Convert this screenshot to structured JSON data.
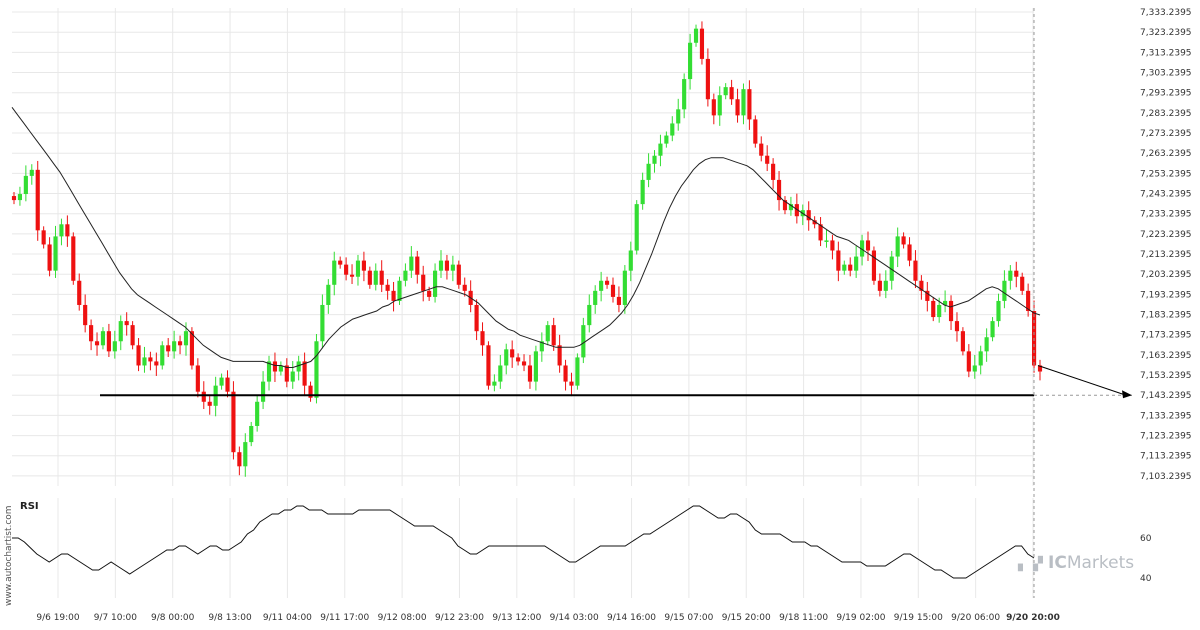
{
  "chart_data": {
    "type": "candlestick",
    "price_axis": {
      "labels": [
        "7,333.2395",
        "7,323.2395",
        "7,313.2395",
        "7,303.2395",
        "7,293.2395",
        "7,283.2395",
        "7,273.2395",
        "7,263.2395",
        "7,253.2395",
        "7,243.2395",
        "7,233.2395",
        "7,223.2395",
        "7,213.2395",
        "7,203.2395",
        "7,193.2395",
        "7,183.2395",
        "7,173.2395",
        "7,163.2395",
        "7,153.2395",
        "7,143.2395",
        "7,133.2395",
        "7,123.2395",
        "7,113.2395",
        "7,103.2395"
      ],
      "range": [
        7098.2395,
        7335.2395
      ]
    },
    "time_axis": {
      "labels": [
        "9/6 19:00",
        "9/7 10:00",
        "9/8 00:00",
        "9/8 13:00",
        "9/11 04:00",
        "9/11 17:00",
        "9/12 08:00",
        "9/12 23:00",
        "9/13 12:00",
        "9/14 03:00",
        "9/14 16:00",
        "9/15 07:00",
        "9/15 20:00",
        "9/18 11:00",
        "9/19 02:00",
        "9/19 15:00",
        "9/20 06:00",
        "9/20 20:00"
      ],
      "highlight": "9/20 20:00"
    },
    "support_level": 7143.2395,
    "projection": {
      "from": 7158.0,
      "to": 7143.2395
    },
    "candles": [
      7240,
      7243,
      7252,
      7255,
      7225,
      7218,
      7205,
      7222,
      7228,
      7222,
      7200,
      7188,
      7178,
      7170,
      7168,
      7175,
      7165,
      7170,
      7180,
      7178,
      7168,
      7158,
      7162,
      7160,
      7158,
      7168,
      7165,
      7170,
      7168,
      7175,
      7158,
      7145,
      7140,
      7138,
      7148,
      7152,
      7145,
      7115,
      7108,
      7120,
      7128,
      7140,
      7150,
      7160,
      7155,
      7158,
      7150,
      7155,
      7160,
      7148,
      7142,
      7170,
      7188,
      7198,
      7210,
      7208,
      7203,
      7202,
      7210,
      7205,
      7198,
      7205,
      7198,
      7195,
      7190,
      7200,
      7205,
      7212,
      7203,
      7195,
      7192,
      7205,
      7210,
      7205,
      7208,
      7198,
      7195,
      7188,
      7175,
      7168,
      7148,
      7150,
      7158,
      7166,
      7162,
      7160,
      7158,
      7150,
      7165,
      7170,
      7178,
      7168,
      7158,
      7150,
      7148,
      7162,
      7178,
      7188,
      7195,
      7200,
      7198,
      7192,
      7188,
      7205,
      7215,
      7238,
      7250,
      7258,
      7262,
      7268,
      7272,
      7278,
      7285,
      7300,
      7318,
      7325,
      7310,
      7290,
      7282,
      7292,
      7296,
      7290,
      7282,
      7295,
      7280,
      7268,
      7262,
      7258,
      7250,
      7240,
      7235,
      7238,
      7232,
      7235,
      7230,
      7228,
      7220,
      7220,
      7215,
      7205,
      7208,
      7205,
      7212,
      7220,
      7215,
      7200,
      7195,
      7200,
      7212,
      7222,
      7218,
      7210,
      7200,
      7195,
      7190,
      7182,
      7188,
      7190,
      7180,
      7175,
      7165,
      7155,
      7158,
      7165,
      7172,
      7180,
      7190,
      7200,
      7205,
      7202,
      7195,
      7185,
      7158,
      7155
    ],
    "ma_line": [
      7286,
      7282,
      7278,
      7274,
      7270,
      7266,
      7262,
      7258,
      7254,
      7249,
      7244,
      7239,
      7234,
      7229,
      7224,
      7219,
      7214,
      7209,
      7204,
      7200,
      7196,
      7193,
      7191,
      7189,
      7187,
      7185,
      7183,
      7181,
      7179,
      7177,
      7174,
      7171,
      7168,
      7166,
      7164,
      7162,
      7161,
      7160,
      7160,
      7160,
      7160,
      7160,
      7160,
      7159,
      7158,
      7158,
      7157,
      7157,
      7158,
      7159,
      7160,
      7163,
      7167,
      7171,
      7174,
      7177,
      7179,
      7181,
      7182,
      7183,
      7184,
      7185,
      7187,
      7188,
      7190,
      7191,
      7192,
      7193,
      7194,
      7195,
      7196,
      7197,
      7197,
      7196,
      7195,
      7194,
      7193,
      7191,
      7189,
      7186,
      7183,
      7180,
      7178,
      7176,
      7175,
      7173,
      7172,
      7171,
      7170,
      7169,
      7168,
      7167,
      7167,
      7167,
      7167,
      7168,
      7170,
      7172,
      7174,
      7176,
      7178,
      7181,
      7184,
      7188,
      7193,
      7199,
      7206,
      7213,
      7221,
      7229,
      7236,
      7242,
      7247,
      7251,
      7255,
      7258,
      7260,
      7261,
      7261,
      7261,
      7260,
      7259,
      7258,
      7257,
      7255,
      7252,
      7249,
      7246,
      7243,
      7240,
      7238,
      7236,
      7234,
      7232,
      7230,
      7228,
      7226,
      7224,
      7222,
      7221,
      7220,
      7218,
      7216,
      7214,
      7212,
      7210,
      7208,
      7206,
      7204,
      7202,
      7200,
      7198,
      7196,
      7194,
      7192,
      7190,
      7188,
      7187,
      7188,
      7189,
      7190,
      7192,
      7194,
      7196,
      7197,
      7196,
      7194,
      7192,
      7190,
      7188,
      7186,
      7184,
      7183
    ],
    "rsi": {
      "title": "RSI",
      "levels": [
        "60",
        "40"
      ],
      "values": [
        60,
        60,
        58,
        55,
        52,
        50,
        48,
        50,
        52,
        52,
        50,
        48,
        46,
        44,
        44,
        46,
        48,
        46,
        44,
        42,
        44,
        46,
        48,
        50,
        52,
        54,
        54,
        56,
        56,
        54,
        52,
        54,
        56,
        56,
        54,
        54,
        56,
        58,
        62,
        64,
        68,
        70,
        72,
        72,
        74,
        74,
        76,
        76,
        74,
        74,
        74,
        72,
        72,
        72,
        72,
        72,
        74,
        74,
        74,
        74,
        74,
        74,
        72,
        70,
        68,
        66,
        66,
        66,
        66,
        64,
        62,
        60,
        56,
        54,
        52,
        52,
        54,
        56,
        56,
        56,
        56,
        56,
        56,
        56,
        56,
        56,
        56,
        54,
        52,
        50,
        48,
        48,
        50,
        52,
        54,
        56,
        56,
        56,
        56,
        56,
        58,
        60,
        62,
        62,
        64,
        66,
        68,
        70,
        72,
        74,
        76,
        76,
        74,
        72,
        70,
        70,
        72,
        72,
        70,
        68,
        64,
        62,
        62,
        62,
        62,
        60,
        58,
        58,
        58,
        56,
        56,
        54,
        52,
        50,
        48,
        48,
        48,
        48,
        46,
        46,
        46,
        46,
        48,
        50,
        52,
        52,
        50,
        48,
        46,
        44,
        44,
        42,
        40,
        40,
        40,
        42,
        44,
        46,
        48,
        50,
        52,
        54,
        56,
        56,
        52,
        50
      ],
      "range": [
        30,
        80
      ]
    }
  },
  "watermark": "www.autochartist.com",
  "brand": {
    "prefix": "IC",
    "name": "Markets"
  },
  "colors": {
    "up": "#33dd33",
    "down": "#ee1111",
    "line": "#000000",
    "grid": "#e8e8e8"
  }
}
